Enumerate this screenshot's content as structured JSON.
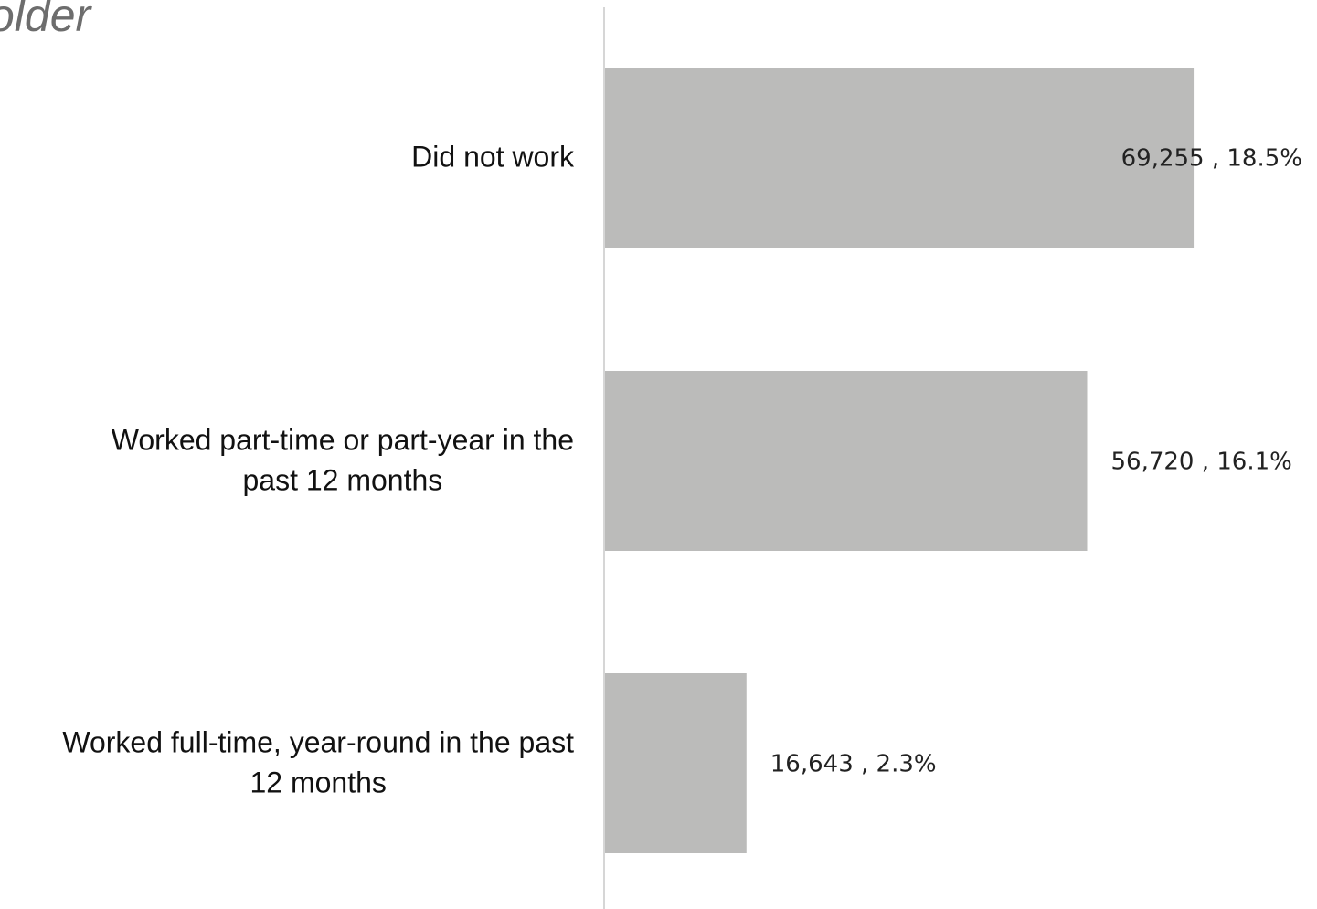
{
  "chart_data": {
    "type": "bar",
    "orientation": "horizontal",
    "title": "older",
    "categories": [
      [
        "Did not work"
      ],
      [
        "Worked part-time or part-year in the",
        "past 12 months"
      ],
      [
        "Worked full-time, year-round in the past",
        "12 months"
      ]
    ],
    "values": [
      69255,
      56720,
      16643
    ],
    "percents": [
      18.5,
      16.1,
      2.3
    ],
    "data_labels": [
      "69,255 , 18.5%",
      "56,720 , 16.1%",
      "16,643 , 2.3%"
    ],
    "xlim": [
      0,
      80000
    ],
    "grid": false,
    "legend": "none",
    "colors": {
      "bar": "#bbbbba",
      "axis": "#d6d6d6",
      "title": "#6d6d6d",
      "text": "#111111"
    }
  }
}
